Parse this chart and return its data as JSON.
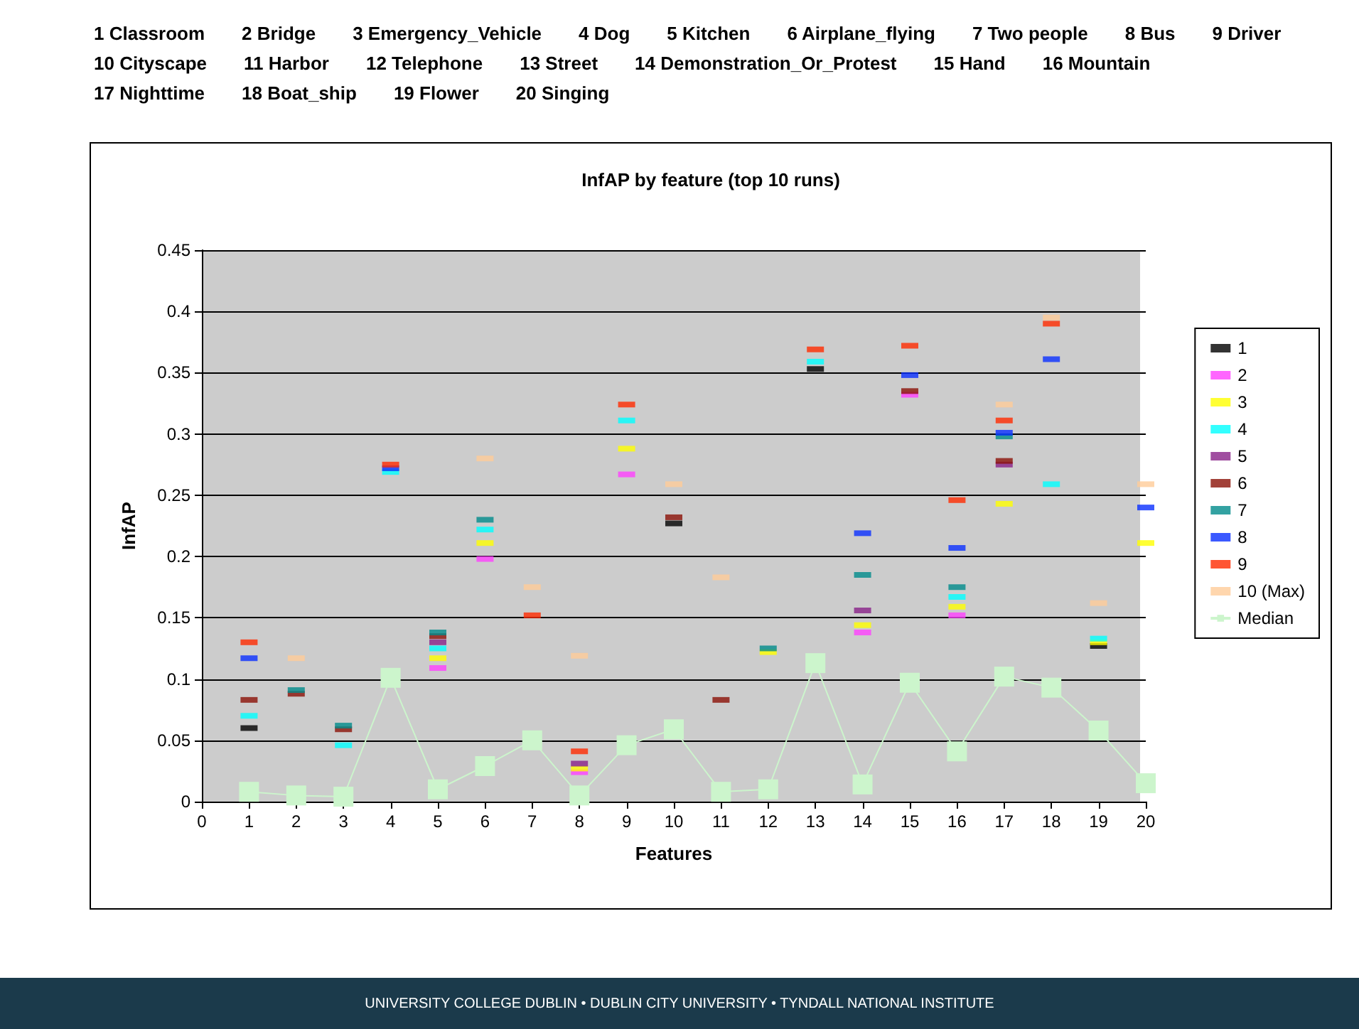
{
  "chart_data": {
    "type": "scatter",
    "title": "InfAP by feature (top 10 runs)",
    "xlabel": "Features",
    "ylabel": "InfAP",
    "x": [
      1,
      2,
      3,
      4,
      5,
      6,
      7,
      8,
      9,
      10,
      11,
      12,
      13,
      14,
      15,
      16,
      17,
      18,
      19,
      20
    ],
    "xlim": [
      0,
      20
    ],
    "xticks": [
      0,
      1,
      2,
      3,
      4,
      5,
      6,
      7,
      8,
      9,
      10,
      11,
      12,
      13,
      14,
      15,
      16,
      17,
      18,
      19,
      20
    ],
    "ylim": [
      0,
      0.45
    ],
    "yticks": [
      0,
      0.05,
      0.1,
      0.15,
      0.2,
      0.25,
      0.3,
      0.35,
      0.4,
      0.45
    ],
    "grid": "y",
    "legend": "right",
    "series": [
      {
        "name": "1",
        "color": "#000000",
        "values": [
          0.06,
          null,
          null,
          null,
          null,
          null,
          null,
          null,
          null,
          0.227,
          null,
          null,
          0.353,
          null,
          null,
          null,
          null,
          null,
          0.127,
          null
        ]
      },
      {
        "name": "2",
        "color": "#ff40ff",
        "values": [
          null,
          null,
          null,
          null,
          0.109,
          0.198,
          null,
          0.024,
          0.267,
          null,
          null,
          null,
          null,
          0.138,
          0.332,
          0.152,
          null,
          null,
          null,
          null
        ]
      },
      {
        "name": "3",
        "color": "#ffff00",
        "values": [
          null,
          null,
          null,
          null,
          0.117,
          0.211,
          null,
          0.027,
          0.288,
          null,
          null,
          0.122,
          null,
          0.144,
          null,
          0.159,
          0.243,
          null,
          0.13,
          0.211
        ]
      },
      {
        "name": "4",
        "color": "#00ffff",
        "values": [
          0.07,
          null,
          0.046,
          0.269,
          0.125,
          0.222,
          null,
          null,
          0.311,
          null,
          null,
          null,
          0.359,
          null,
          null,
          0.167,
          null,
          0.259,
          0.133,
          null
        ]
      },
      {
        "name": "5",
        "color": "#882288",
        "values": [
          null,
          null,
          null,
          null,
          0.13,
          null,
          null,
          0.031,
          null,
          null,
          null,
          null,
          null,
          0.156,
          null,
          null,
          0.275,
          null,
          null,
          null
        ]
      },
      {
        "name": "6",
        "color": "#8b1208",
        "values": [
          0.083,
          0.088,
          0.059,
          null,
          0.135,
          null,
          null,
          null,
          null,
          0.232,
          0.083,
          null,
          null,
          null,
          0.335,
          null,
          0.278,
          null,
          null,
          null
        ]
      },
      {
        "name": "7",
        "color": "#008b8b",
        "values": [
          null,
          0.091,
          0.062,
          null,
          0.138,
          0.23,
          null,
          null,
          null,
          null,
          null,
          0.125,
          null,
          0.185,
          null,
          0.175,
          0.298,
          null,
          null,
          null
        ]
      },
      {
        "name": "8",
        "color": "#0a30ff",
        "values": [
          0.117,
          null,
          null,
          0.272,
          null,
          null,
          null,
          null,
          null,
          null,
          null,
          null,
          null,
          0.219,
          0.348,
          0.207,
          0.301,
          0.361,
          null,
          0.24
        ]
      },
      {
        "name": "9",
        "color": "#ff2a00",
        "values": [
          0.13,
          null,
          null,
          0.275,
          null,
          null,
          0.152,
          0.041,
          0.324,
          null,
          null,
          null,
          0.369,
          null,
          0.372,
          0.246,
          0.311,
          0.39,
          null,
          null
        ]
      },
      {
        "name": "10 (Max)",
        "color": "#ffcc99",
        "values": [
          null,
          0.117,
          null,
          null,
          null,
          0.28,
          0.175,
          0.119,
          null,
          0.259,
          0.183,
          null,
          null,
          null,
          null,
          null,
          0.324,
          0.395,
          0.162,
          0.259
        ]
      },
      {
        "name": "Median",
        "type": "line",
        "marker": "square",
        "color": "#ccf5cc",
        "values": [
          0.008,
          0.005,
          0.004,
          0.101,
          0.01,
          0.029,
          0.05,
          0.005,
          0.046,
          0.059,
          0.008,
          0.01,
          0.113,
          0.014,
          0.097,
          0.041,
          0.102,
          0.093,
          0.058,
          0.015
        ]
      }
    ],
    "annotations": [
      "1 Classroom",
      "2 Bridge",
      "3 Emergency_Vehicle",
      "4 Dog",
      "5 Kitchen",
      "6 Airplane_flying",
      "7 Two people",
      "8 Bus",
      "9 Driver",
      "10 Cityscape",
      "11 Harbor",
      "12 Telephone",
      "13 Street",
      "14 Demonstration_Or_Protest",
      "15 Hand",
      "16 Mountain",
      "17 Nighttime",
      "18 Boat_ship",
      "19 Flower",
      "20 Singing",
      "UNIVERSITY COLLEGE DUBLIN  •  DUBLIN CITY UNIVERSITY  •  TYNDALL NATIONAL INSTITUTE"
    ]
  }
}
